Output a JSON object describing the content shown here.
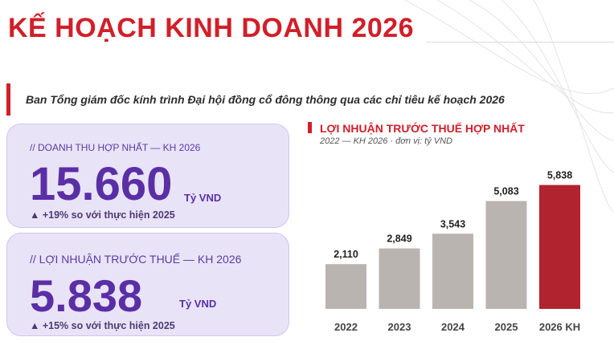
{
  "page": {
    "title": "KẾ HOẠCH KINH DOANH 2026",
    "subtitle": "Ban Tổng giám đốc kính trình Đại hội đồng cổ đông thông qua các chỉ tiêu kế hoạch 2026"
  },
  "cards": {
    "revenue": {
      "label": "// DOANH THU HỢP NHẤT — KH 2026",
      "value": "15.660",
      "unit": "Tỷ VND",
      "growth": "▲ +19% so với thực hiện 2025"
    },
    "profit": {
      "label": "// LỢI NHUẬN TRƯỚC THUẾ — KH 2026",
      "value": "5.838",
      "unit": "Tỷ VND",
      "growth": "▲ +15% so với thực hiện 2025"
    }
  },
  "colors": {
    "brand_red": "#d11f2a",
    "bar_gray": "#b9b4b0",
    "bar_highlight": "#b0232f",
    "card_purple": "#5a2fa5"
  },
  "chart_data": {
    "type": "bar",
    "title": "LỢI NHUẬN TRƯỚC THUẾ HỢP NHẤT",
    "subtitle": "2022 — KH 2026 · đơn vị: tỷ VND",
    "categories": [
      "2022",
      "2023",
      "2024",
      "2025",
      "2026 KH"
    ],
    "values": [
      2110,
      2849,
      3543,
      5083,
      5838
    ],
    "value_labels": [
      "2,110",
      "2,849",
      "3,543",
      "5,083",
      "5,838"
    ],
    "highlight_category": "2026 KH",
    "grid": false,
    "legend": "none"
  }
}
